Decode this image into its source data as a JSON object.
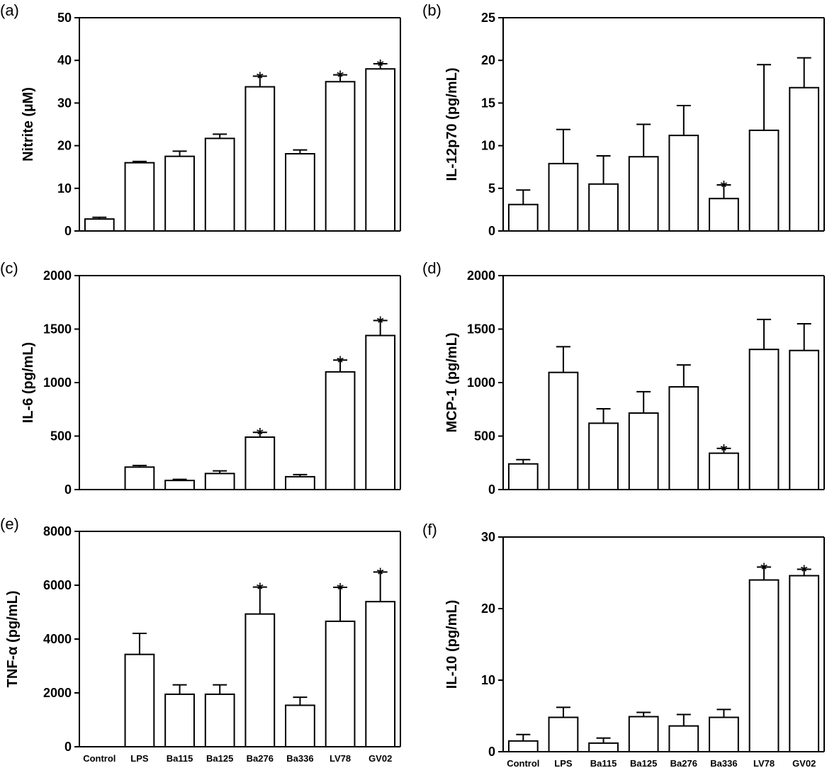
{
  "figure": {
    "categories": [
      "Control",
      "LPS",
      "Ba115",
      "Ba125",
      "Ba276",
      "Ba336",
      "LV78",
      "GV02"
    ]
  },
  "chart_data": [
    {
      "type": "bar",
      "panel": "(a)",
      "ylabel": "Nitrite (µM)",
      "ylim": [
        0,
        50
      ],
      "yticks": [
        "0",
        "10",
        "20",
        "30",
        "40",
        "50"
      ],
      "categories": [
        "Control",
        "LPS",
        "Ba115",
        "Ba125",
        "Ba276",
        "Ba336",
        "LV78",
        "GV02"
      ],
      "show_xticks": false,
      "values": [
        2.8,
        16,
        17.5,
        21.7,
        33.8,
        18.1,
        35,
        38
      ],
      "errors": [
        0.4,
        0.3,
        1.2,
        1.0,
        2.5,
        0.9,
        1.6,
        1.2
      ],
      "significant": [
        false,
        false,
        false,
        false,
        true,
        false,
        true,
        true
      ],
      "star_label": "*"
    },
    {
      "type": "bar",
      "panel": "(b)",
      "ylabel": "IL-12p70 (pg/mL)",
      "ylim": [
        0,
        25
      ],
      "yticks": [
        "0",
        "5",
        "10",
        "15",
        "20",
        "25"
      ],
      "categories": [
        "Control",
        "LPS",
        "Ba115",
        "Ba125",
        "Ba276",
        "Ba336",
        "LV78",
        "GV02"
      ],
      "show_xticks": false,
      "values": [
        3.1,
        7.9,
        5.5,
        8.7,
        11.2,
        3.8,
        11.8,
        16.8
      ],
      "errors": [
        1.7,
        4.0,
        3.3,
        3.8,
        3.5,
        1.6,
        7.7,
        3.5
      ],
      "significant": [
        false,
        false,
        false,
        false,
        false,
        true,
        false,
        false
      ],
      "star_label": "*"
    },
    {
      "type": "bar",
      "panel": "(c)",
      "ylabel": "IL-6 (pg/mL)",
      "ylim": [
        0,
        2000
      ],
      "yticks": [
        "0",
        "500",
        "1000",
        "1500",
        "2000"
      ],
      "categories": [
        "Control",
        "LPS",
        "Ba115",
        "Ba125",
        "Ba276",
        "Ba336",
        "LV78",
        "GV02"
      ],
      "show_xticks": false,
      "values": [
        0,
        210,
        85,
        150,
        490,
        120,
        1100,
        1440
      ],
      "errors": [
        0,
        15,
        10,
        25,
        45,
        20,
        110,
        140
      ],
      "significant": [
        false,
        false,
        false,
        false,
        true,
        false,
        true,
        true
      ],
      "star_label": "*"
    },
    {
      "type": "bar",
      "panel": "(d)",
      "ylabel": "MCP-1 (pg/mL)",
      "ylim": [
        0,
        2000
      ],
      "yticks": [
        "0",
        "500",
        "1000",
        "1500",
        "2000"
      ],
      "categories": [
        "Control",
        "LPS",
        "Ba115",
        "Ba125",
        "Ba276",
        "Ba336",
        "LV78",
        "GV02"
      ],
      "show_xticks": false,
      "values": [
        240,
        1095,
        620,
        715,
        960,
        340,
        1310,
        1300
      ],
      "errors": [
        40,
        240,
        135,
        200,
        205,
        45,
        280,
        250
      ],
      "significant": [
        false,
        false,
        false,
        false,
        false,
        true,
        false,
        false
      ],
      "star_label": "*"
    },
    {
      "type": "bar",
      "panel": "(e)",
      "ylabel": "TNF-α (pg/mL)",
      "ylim": [
        0,
        8000
      ],
      "yticks": [
        "0",
        "2000",
        "4000",
        "6000",
        "8000"
      ],
      "categories": [
        "Control",
        "LPS",
        "Ba115",
        "Ba125",
        "Ba276",
        "Ba336",
        "LV78",
        "GV02"
      ],
      "show_xticks": true,
      "values": [
        0,
        3430,
        1950,
        1950,
        4930,
        1540,
        4660,
        5390
      ],
      "errors": [
        0,
        780,
        350,
        350,
        1000,
        300,
        1260,
        1100
      ],
      "significant": [
        false,
        false,
        false,
        false,
        true,
        false,
        true,
        true
      ],
      "star_label": "*"
    },
    {
      "type": "bar",
      "panel": "(f)",
      "ylabel": "IL-10 (pg/mL)",
      "ylim": [
        0,
        30
      ],
      "yticks": [
        "0",
        "10",
        "20",
        "30"
      ],
      "categories": [
        "Control",
        "LPS",
        "Ba115",
        "Ba125",
        "Ba276",
        "Ba336",
        "LV78",
        "GV02"
      ],
      "show_xticks": true,
      "values": [
        1.5,
        4.8,
        1.2,
        4.9,
        3.6,
        4.8,
        24,
        24.6
      ],
      "errors": [
        0.9,
        1.4,
        0.7,
        0.6,
        1.6,
        1.1,
        1.8,
        0.9
      ],
      "significant": [
        false,
        false,
        false,
        false,
        false,
        false,
        true,
        true
      ],
      "star_label": "*"
    }
  ]
}
